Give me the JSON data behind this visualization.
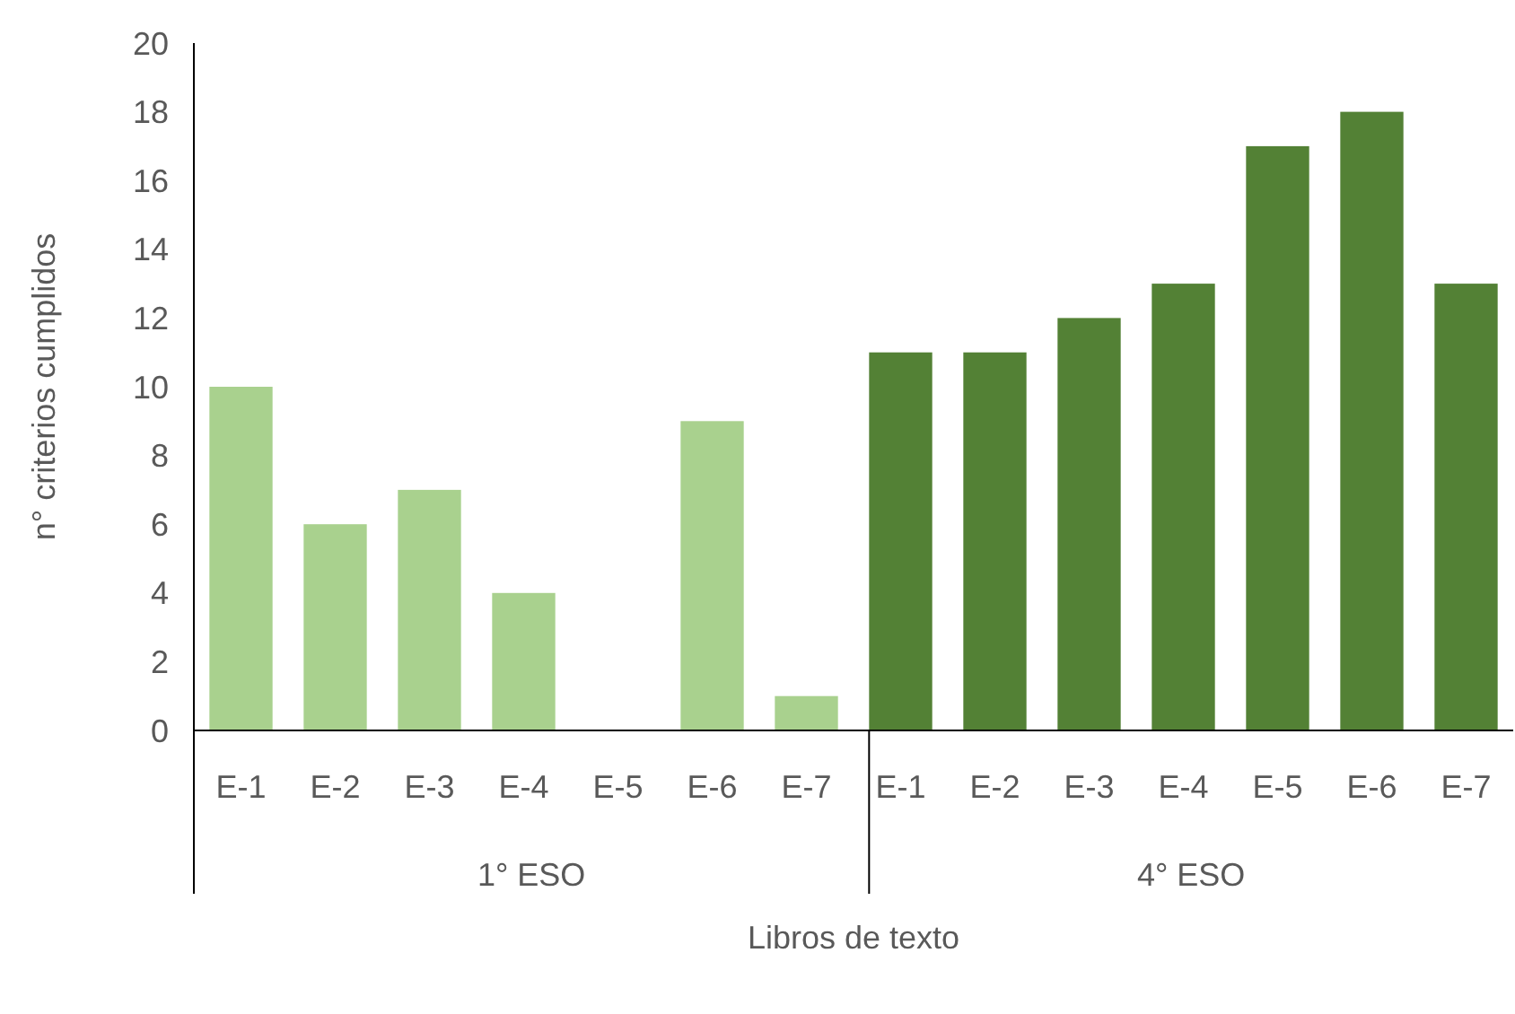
{
  "chart_data": {
    "type": "bar",
    "xlabel": "Libros de texto",
    "ylabel": "n° criterios cumplidos",
    "categories": [
      "E-1",
      "E-2",
      "E-3",
      "E-4",
      "E-5",
      "E-6",
      "E-7",
      "E-1",
      "E-2",
      "E-3",
      "E-4",
      "E-5",
      "E-6",
      "E-7"
    ],
    "values": [
      10,
      6,
      7,
      4,
      0,
      9,
      1,
      11,
      11,
      12,
      13,
      17,
      18,
      13
    ],
    "colors": [
      "#a9d18e",
      "#a9d18e",
      "#a9d18e",
      "#a9d18e",
      "#a9d18e",
      "#a9d18e",
      "#a9d18e",
      "#538135",
      "#538135",
      "#538135",
      "#538135",
      "#538135",
      "#538135",
      "#538135"
    ],
    "annotations": [
      "1° ESO",
      "4° ESO"
    ],
    "ylim": [
      0,
      20
    ],
    "yticks": [
      0,
      2,
      4,
      6,
      8,
      10,
      12,
      14,
      16,
      18,
      20
    ],
    "grid": false
  }
}
